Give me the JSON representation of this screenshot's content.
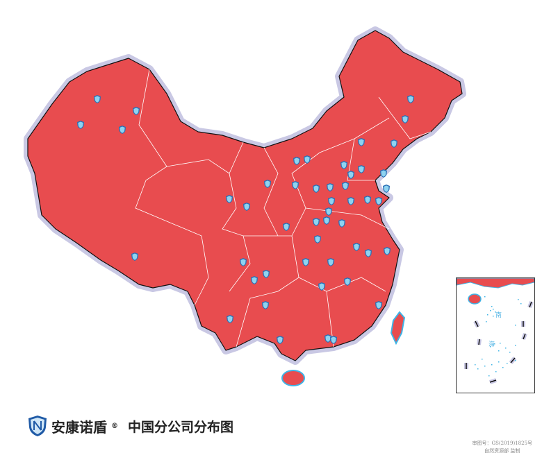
{
  "title": {
    "brand": "安康诺盾",
    "registered": "®",
    "subtitle": "中国分公司分布图"
  },
  "approval": {
    "line1": "审图号：GS(2019)1825号",
    "line2": "自然资源部 监制"
  },
  "inset": {
    "label_south": "南",
    "label_sea": "海"
  },
  "colors": {
    "land": "#e84c4f",
    "halo": "#c9c8e4",
    "border": "#ffffff",
    "marker": "#8fd3f0",
    "coast": "#3fb4e6"
  },
  "icons": {
    "marker": "shield-icon",
    "logo": "shield-logo-icon"
  }
}
